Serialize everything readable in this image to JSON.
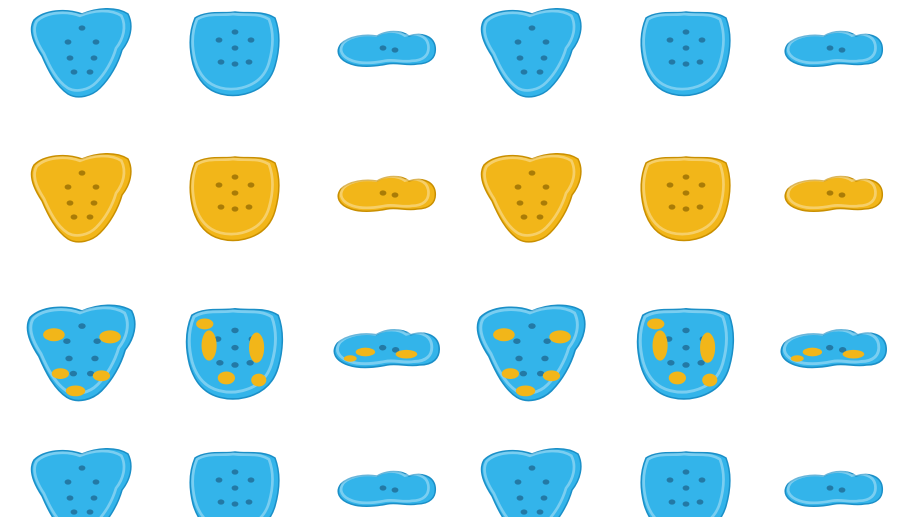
{
  "colors": {
    "background": "#ffffff",
    "reference": "#33b4ea",
    "reference_shade": "#1b8fc7",
    "prediction": "#f2b619",
    "prediction_shade": "#c98f00",
    "hole": "#1c5f88",
    "hole_yellow": "#8a6400"
  },
  "grid": {
    "rows": 4,
    "cols": 6,
    "views": [
      "front-icon",
      "back-icon",
      "top-icon"
    ]
  },
  "rows": [
    {
      "name": "row-reference",
      "base": "reference",
      "overlay": "none"
    },
    {
      "name": "row-prediction",
      "base": "prediction",
      "overlay": "none"
    },
    {
      "name": "row-overlay",
      "base": "reference",
      "overlay": "patches"
    },
    {
      "name": "row-reference-cropped",
      "base": "reference",
      "overlay": "none"
    }
  ]
}
